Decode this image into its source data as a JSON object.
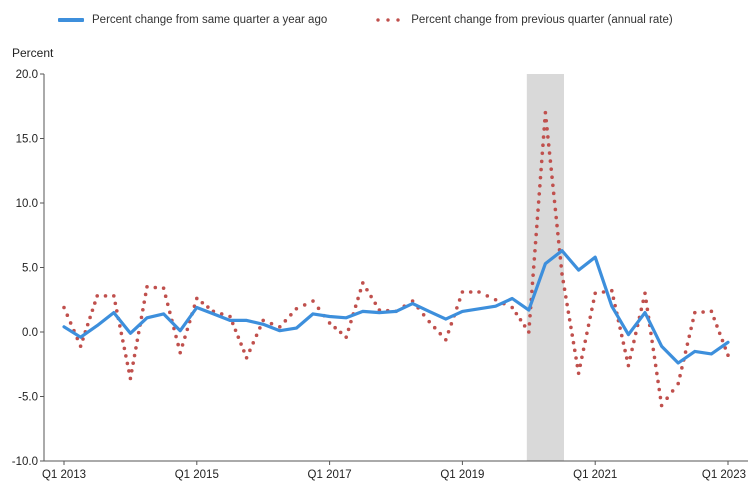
{
  "chart_data": {
    "type": "line",
    "ylabel": "Percent",
    "ylim": [
      -10,
      20
    ],
    "yticks": [
      "20.0",
      "15.0",
      "10.0",
      "5.0",
      "0.0",
      "-5.0",
      "-10.0"
    ],
    "ytick_values": [
      20,
      15,
      10,
      5,
      0,
      -5,
      -10
    ],
    "xticks": [
      "Q1 2013",
      "Q1 2015",
      "Q1 2017",
      "Q1 2019",
      "Q1 2021",
      "Q1 2023"
    ],
    "xtick_index": [
      0,
      8,
      16,
      24,
      32,
      40
    ],
    "grid": false,
    "legend_position": "top",
    "recession_shading": {
      "from_index": 28,
      "to_index": 30,
      "color": "#d9d9d9"
    },
    "series": [
      {
        "name": "Percent change from same quarter a year ago",
        "style": "solid",
        "color": "#3d8fdc",
        "values": [
          0.4,
          -0.4,
          0.5,
          1.5,
          -0.1,
          1.1,
          1.4,
          0.1,
          1.9,
          1.4,
          0.9,
          0.9,
          0.6,
          0.1,
          0.3,
          1.4,
          1.2,
          1.1,
          1.6,
          1.5,
          1.6,
          2.2,
          1.6,
          1.0,
          1.6,
          1.8,
          2.0,
          2.6,
          1.7,
          5.3,
          6.3,
          4.8,
          5.8,
          2.0,
          -0.2,
          1.5,
          -1.1,
          -2.4,
          -1.5,
          -1.7,
          -0.8
        ]
      },
      {
        "name": "Percent change from previous quarter (annual rate)",
        "style": "dotted",
        "color": "#c0504d",
        "values": [
          1.9,
          -1.1,
          2.8,
          2.8,
          -3.6,
          3.5,
          3.4,
          -1.6,
          2.6,
          1.6,
          1.2,
          -2.0,
          0.9,
          0.4,
          1.8,
          2.4,
          0.7,
          -0.4,
          3.8,
          1.7,
          1.6,
          2.4,
          0.8,
          -0.6,
          3.1,
          3.1,
          2.5,
          1.9,
          0.0,
          17.0,
          4.5,
          -3.2,
          3.0,
          3.2,
          -2.6,
          3.0,
          -5.7,
          -4.0,
          1.5,
          1.6,
          -1.8
        ]
      }
    ]
  }
}
